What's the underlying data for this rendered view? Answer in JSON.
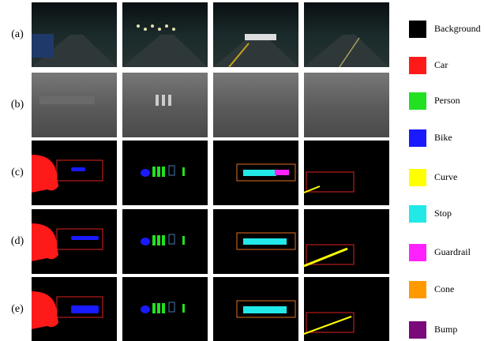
{
  "rows": [
    {
      "label": "(a)"
    },
    {
      "label": "(b)"
    },
    {
      "label": "(c)"
    },
    {
      "label": "(d)"
    },
    {
      "label": "(e)"
    }
  ],
  "legend": [
    {
      "name": "Background",
      "color": "#000000"
    },
    {
      "name": "Car",
      "color": "#ff1a1a"
    },
    {
      "name": "Person",
      "color": "#22e022"
    },
    {
      "name": "Bike",
      "color": "#1a1aff"
    },
    {
      "name": "Curve",
      "color": "#ffff00"
    },
    {
      "name": "Stop",
      "color": "#22e8e8"
    },
    {
      "name": "Guardrail",
      "color": "#ff22ff"
    },
    {
      "name": "Cone",
      "color": "#ff9900"
    },
    {
      "name": "Bump",
      "color": "#7a0a7a"
    }
  ]
}
